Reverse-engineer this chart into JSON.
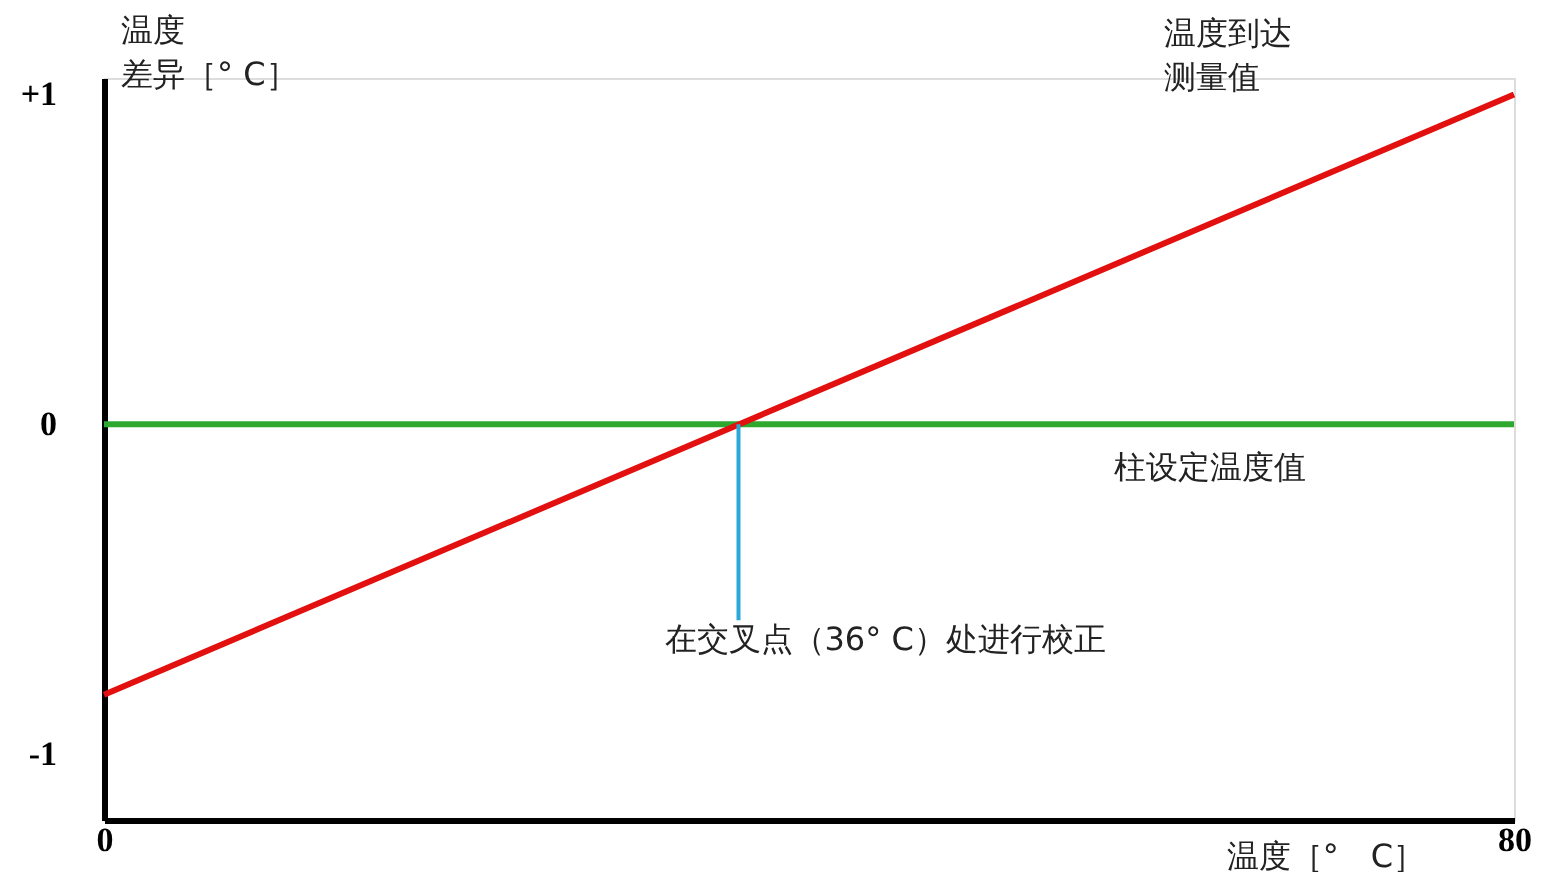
{
  "chart_data": {
    "type": "line",
    "xlabel": "温度［°　C］",
    "ylabel": "温度差异［° C］",
    "x": [
      0,
      80
    ],
    "series": [
      {
        "name": "柱设定温度值",
        "color": "#2ea82e",
        "values": [
          0,
          0
        ]
      },
      {
        "name": "温度到达测量值",
        "color": "#e31010",
        "values": [
          -0.82,
          1.0
        ]
      }
    ],
    "xlim": [
      0,
      80
    ],
    "xticks": [
      0,
      80
    ],
    "ylim": [
      -1.2,
      1.05
    ],
    "yticks": [
      -1,
      0,
      {
        "value": 1,
        "label": "+1"
      }
    ],
    "grid": false,
    "legend": false,
    "marker": "none",
    "line_style": "solid",
    "annotations": [
      {
        "text": "在交叉点（36° C）处进行校正",
        "x": 36,
        "y": 0
      }
    ]
  }
}
